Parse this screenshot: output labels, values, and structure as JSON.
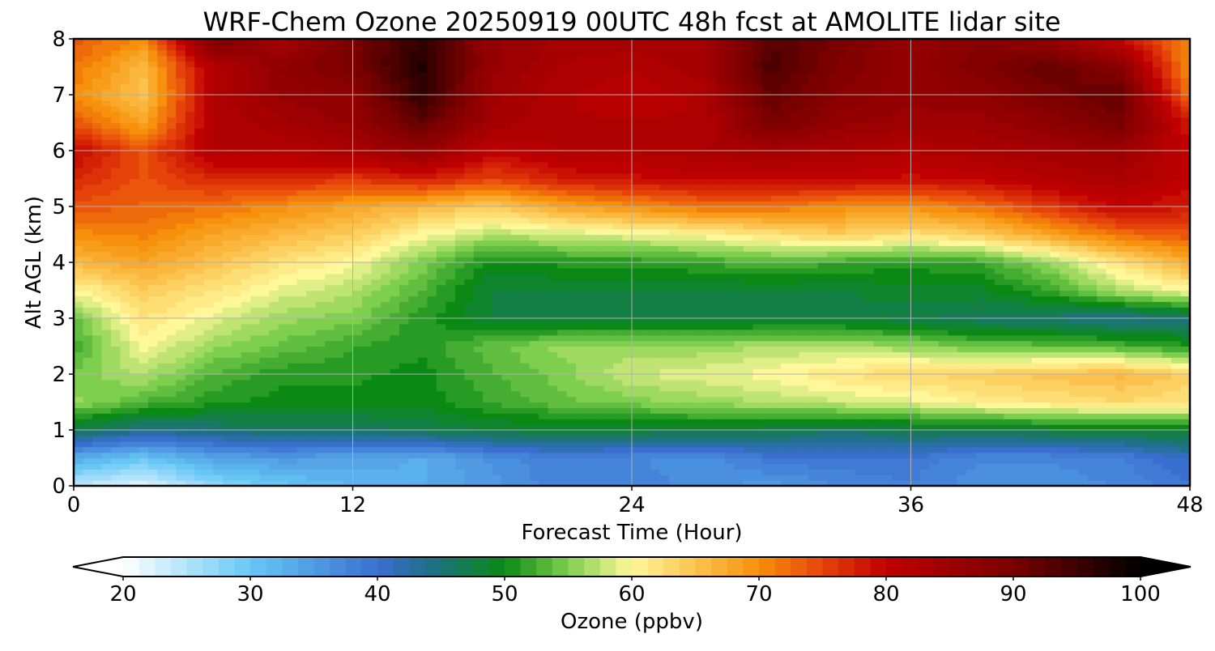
{
  "chart_data": {
    "type": "heatmap",
    "title": "WRF-Chem Ozone  20250919 00UTC 48h fcst at AMOLITE lidar site",
    "xlabel": "Forecast Time (Hour)",
    "ylabel": "Alt AGL (km)",
    "xlim": [
      0,
      48
    ],
    "ylim": [
      0,
      8
    ],
    "x_ticks": [
      0,
      12,
      24,
      36,
      48
    ],
    "y_ticks": [
      0,
      1,
      2,
      3,
      4,
      5,
      6,
      7,
      8
    ],
    "grid": true,
    "colorbar": {
      "label": "Ozone  (ppbv)",
      "min": 20,
      "max": 100,
      "ticks": [
        20,
        30,
        40,
        50,
        60,
        70,
        80,
        90,
        100
      ],
      "extend": "both",
      "orientation": "horizontal",
      "placement": "bottom",
      "stops": [
        {
          "value": 20,
          "color": "#ffffff"
        },
        {
          "value": 30,
          "color": "#66c7f5"
        },
        {
          "value": 40,
          "color": "#3a6fd0"
        },
        {
          "value": 44,
          "color": "#1f6f8a"
        },
        {
          "value": 50,
          "color": "#0a8a14"
        },
        {
          "value": 55,
          "color": "#7fcf4e"
        },
        {
          "value": 60,
          "color": "#fff89a"
        },
        {
          "value": 65,
          "color": "#fbc34e"
        },
        {
          "value": 70,
          "color": "#f7900a"
        },
        {
          "value": 75,
          "color": "#e6430b"
        },
        {
          "value": 80,
          "color": "#c00000"
        },
        {
          "value": 90,
          "color": "#7a0000"
        },
        {
          "value": 100,
          "color": "#000000"
        }
      ]
    },
    "x": [
      0,
      3,
      6,
      9,
      12,
      15,
      18,
      21,
      24,
      27,
      30,
      33,
      36,
      39,
      42,
      45,
      48
    ],
    "y": [
      0,
      0.5,
      1,
      1.5,
      2,
      2.5,
      3,
      3.5,
      4,
      4.5,
      5,
      5.5,
      6,
      6.5,
      7,
      7.5,
      8
    ],
    "z": [
      [
        24,
        22,
        27,
        30,
        32,
        33,
        35,
        38,
        38,
        36,
        35,
        37,
        38,
        36,
        36,
        37,
        39
      ],
      [
        33,
        30,
        34,
        35,
        34,
        33,
        36,
        38,
        37,
        36,
        39,
        39,
        39,
        37,
        37,
        38,
        41
      ],
      [
        47,
        44,
        45,
        46,
        46,
        47,
        48,
        48,
        48,
        48,
        47,
        46,
        47,
        47,
        48,
        48,
        49
      ],
      [
        56,
        53,
        51,
        50,
        50,
        50,
        52,
        54,
        55,
        56,
        57,
        58,
        59,
        61,
        62,
        63,
        62
      ],
      [
        55,
        57,
        53,
        51,
        51,
        50,
        53,
        55,
        58,
        59,
        60,
        62,
        63,
        64,
        65,
        66,
        64
      ],
      [
        52,
        60,
        56,
        54,
        52,
        51,
        54,
        56,
        56,
        56,
        57,
        57,
        56,
        54,
        54,
        53,
        51
      ],
      [
        54,
        62,
        59,
        56,
        55,
        51,
        48,
        48,
        48,
        48,
        48,
        48,
        47,
        46,
        45,
        44,
        45
      ],
      [
        60,
        64,
        62,
        59,
        57,
        53,
        48,
        48,
        48,
        48,
        48,
        48,
        49,
        49,
        52,
        57,
        60
      ],
      [
        66,
        68,
        65,
        62,
        60,
        55,
        50,
        51,
        51,
        52,
        53,
        52,
        51,
        52,
        56,
        62,
        67
      ],
      [
        70,
        71,
        68,
        66,
        64,
        60,
        57,
        58,
        59,
        60,
        62,
        64,
        62,
        64,
        68,
        72,
        74
      ],
      [
        74,
        73,
        72,
        70,
        68,
        66,
        64,
        68,
        70,
        72,
        72,
        70,
        70,
        72,
        76,
        80,
        78
      ],
      [
        77,
        74,
        77,
        77,
        76,
        78,
        75,
        78,
        79,
        80,
        80,
        80,
        79,
        80,
        82,
        83,
        80
      ],
      [
        80,
        74,
        82,
        82,
        83,
        86,
        80,
        82,
        82,
        83,
        84,
        83,
        82,
        83,
        84,
        85,
        80
      ],
      [
        74,
        68,
        82,
        84,
        86,
        92,
        84,
        82,
        82,
        82,
        90,
        86,
        85,
        85,
        87,
        90,
        78
      ],
      [
        70,
        65,
        82,
        86,
        87,
        96,
        85,
        82,
        81,
        82,
        92,
        88,
        86,
        87,
        90,
        92,
        72
      ],
      [
        72,
        66,
        82,
        87,
        90,
        97,
        86,
        83,
        82,
        84,
        94,
        89,
        86,
        89,
        92,
        88,
        70
      ],
      [
        74,
        70,
        90,
        84,
        90,
        96,
        86,
        84,
        84,
        84,
        93,
        90,
        86,
        88,
        86,
        80,
        70
      ]
    ]
  }
}
